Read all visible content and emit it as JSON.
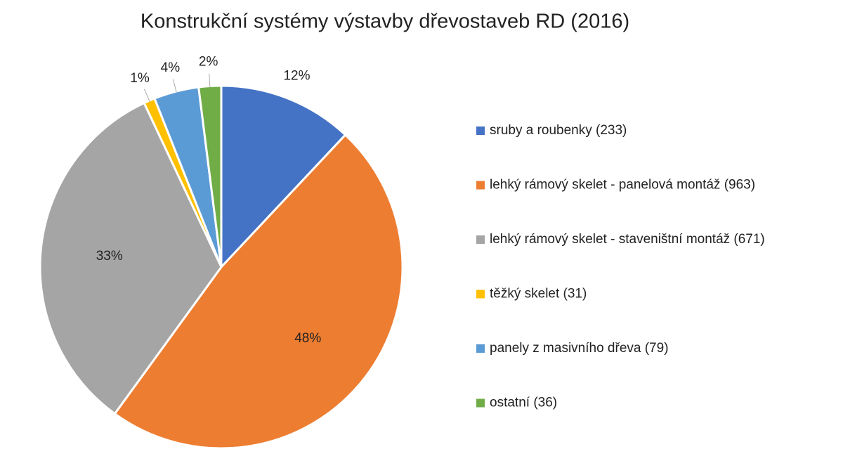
{
  "chart_data": {
    "type": "pie",
    "title": "Konstrukční systémy výstavby dřevostaveb RD (2016)",
    "categories": [
      "sruby a roubenky (233)",
      "lehký rámový skelet - panelová montáž (963)",
      "lehký rámový skelet - staveništní montáž (671)",
      "těžký skelet (31)",
      "panely z masivního dřeva (79)",
      "ostatní (36)"
    ],
    "values": [
      12,
      48,
      33,
      1,
      4,
      2
    ],
    "value_labels": [
      "12%",
      "48%",
      "33%",
      "1%",
      "4%",
      "2%"
    ],
    "colors": [
      "#4472c4",
      "#ed7d31",
      "#a5a5a5",
      "#ffc000",
      "#5b9bd5",
      "#70ad47"
    ],
    "legend": "right"
  }
}
